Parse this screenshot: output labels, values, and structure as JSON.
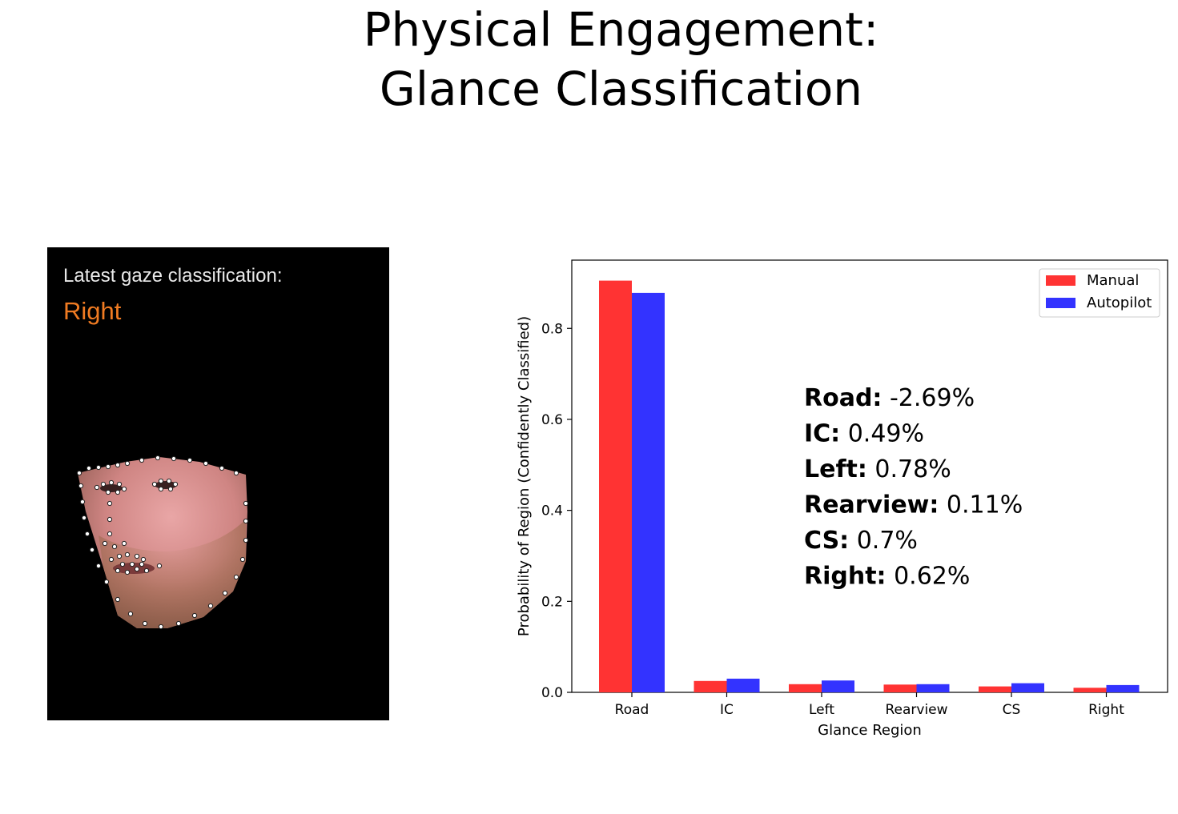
{
  "slide": {
    "title_line1": "Physical Engagement:",
    "title_line2": "Glance Classification"
  },
  "gaze_panel": {
    "label": "Latest gaze classification:",
    "value": "Right",
    "value_color": "#f07b22",
    "image": "face-with-landmark-points"
  },
  "chart_data": {
    "type": "bar",
    "categories": [
      "Road",
      "IC",
      "Left",
      "Rearview",
      "CS",
      "Right"
    ],
    "series": [
      {
        "name": "Manual",
        "color": "#ff3333",
        "values": [
          0.905,
          0.025,
          0.018,
          0.017,
          0.013,
          0.01
        ]
      },
      {
        "name": "Autopilot",
        "color": "#3333ff",
        "values": [
          0.878,
          0.03,
          0.026,
          0.018,
          0.02,
          0.016
        ]
      }
    ],
    "xlabel": "Glance Region",
    "ylabel": "Probability of Region (Confidently Classified)",
    "ylim": [
      0,
      0.95
    ],
    "yticks": [
      "0.0",
      "0.2",
      "0.4",
      "0.6",
      "0.8"
    ],
    "ytick_values": [
      0.0,
      0.2,
      0.4,
      0.6,
      0.8
    ],
    "legend": "top-right",
    "grid": false,
    "annotations": [
      {
        "label": "Road:",
        "value": " -2.69%"
      },
      {
        "label": "IC:",
        "value": " 0.49%"
      },
      {
        "label": "Left:",
        "value": " 0.78%"
      },
      {
        "label": "Rearview:",
        "value": " 0.11%"
      },
      {
        "label": "CS:",
        "value": " 0.7%"
      },
      {
        "label": "Right:",
        "value": " 0.62%"
      }
    ]
  }
}
